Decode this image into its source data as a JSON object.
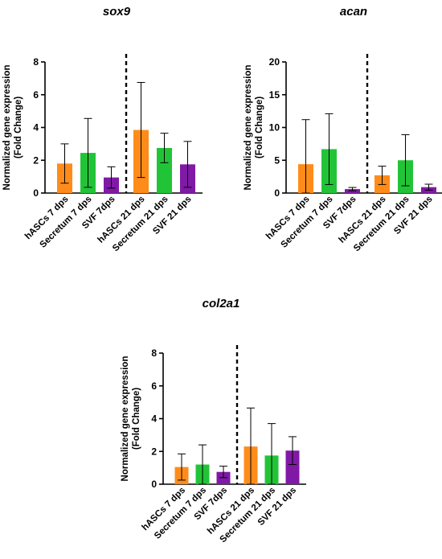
{
  "colors": {
    "hASCs": "#ff8c1a",
    "Secretum": "#22c437",
    "SVF": "#8019a6",
    "axis": "#000000"
  },
  "chart_data": [
    {
      "type": "bar",
      "title": "sox9",
      "ylabel": [
        "Normalized gene expression",
        "(Fold Change)"
      ],
      "ylim": [
        0,
        8
      ],
      "yticks": [
        0,
        2,
        4,
        6,
        8
      ],
      "categories": [
        "hASCs 7 dps",
        "Secretum 7 dps",
        "SVF 7dps",
        "hASCs 21 dps",
        "Secretum 21 dps",
        "SVF 21 dps"
      ],
      "values": [
        1.8,
        2.45,
        0.95,
        3.85,
        2.75,
        1.75
      ],
      "error": [
        1.2,
        2.1,
        0.65,
        2.9,
        0.9,
        1.4
      ],
      "bar_colors": [
        "hASCs",
        "Secretum",
        "SVF",
        "hASCs",
        "Secretum",
        "SVF"
      ],
      "divider_after": 3
    },
    {
      "type": "bar",
      "title": "acan",
      "ylabel": [
        "Normalized gene expression",
        "(Fold Change)"
      ],
      "ylim": [
        0,
        20
      ],
      "yticks": [
        0,
        5,
        10,
        15,
        20
      ],
      "categories": [
        "hASCs 7 dps",
        "Secretum 7 dps",
        "SVF 7dps",
        "hASCs 21 dps",
        "Secretum 21 dps",
        "SVF 21 dps"
      ],
      "values": [
        4.4,
        6.7,
        0.6,
        2.7,
        5.0,
        0.9
      ],
      "error": [
        6.8,
        5.4,
        0.25,
        1.4,
        3.9,
        0.45
      ],
      "bar_colors": [
        "hASCs",
        "Secretum",
        "SVF",
        "hASCs",
        "Secretum",
        "SVF"
      ],
      "divider_after": 3
    },
    {
      "type": "bar",
      "title": "col2a1",
      "ylabel": [
        "Normalized gene expression",
        "(Fold Change)"
      ],
      "ylim": [
        0,
        8
      ],
      "yticks": [
        0,
        2,
        4,
        6,
        8
      ],
      "categories": [
        "hASCs 7 dps",
        "Secretum 7 dps",
        "SVF 7dps",
        "hASCs 21 dps",
        "Secretum 21 dps",
        "SVF 21 dps"
      ],
      "values": [
        1.05,
        1.2,
        0.75,
        2.3,
        1.75,
        2.05
      ],
      "error": [
        0.8,
        1.2,
        0.35,
        2.35,
        1.95,
        0.85
      ],
      "bar_colors": [
        "hASCs",
        "Secretum",
        "SVF",
        "hASCs",
        "Secretum",
        "SVF"
      ],
      "divider_after": 3
    }
  ]
}
